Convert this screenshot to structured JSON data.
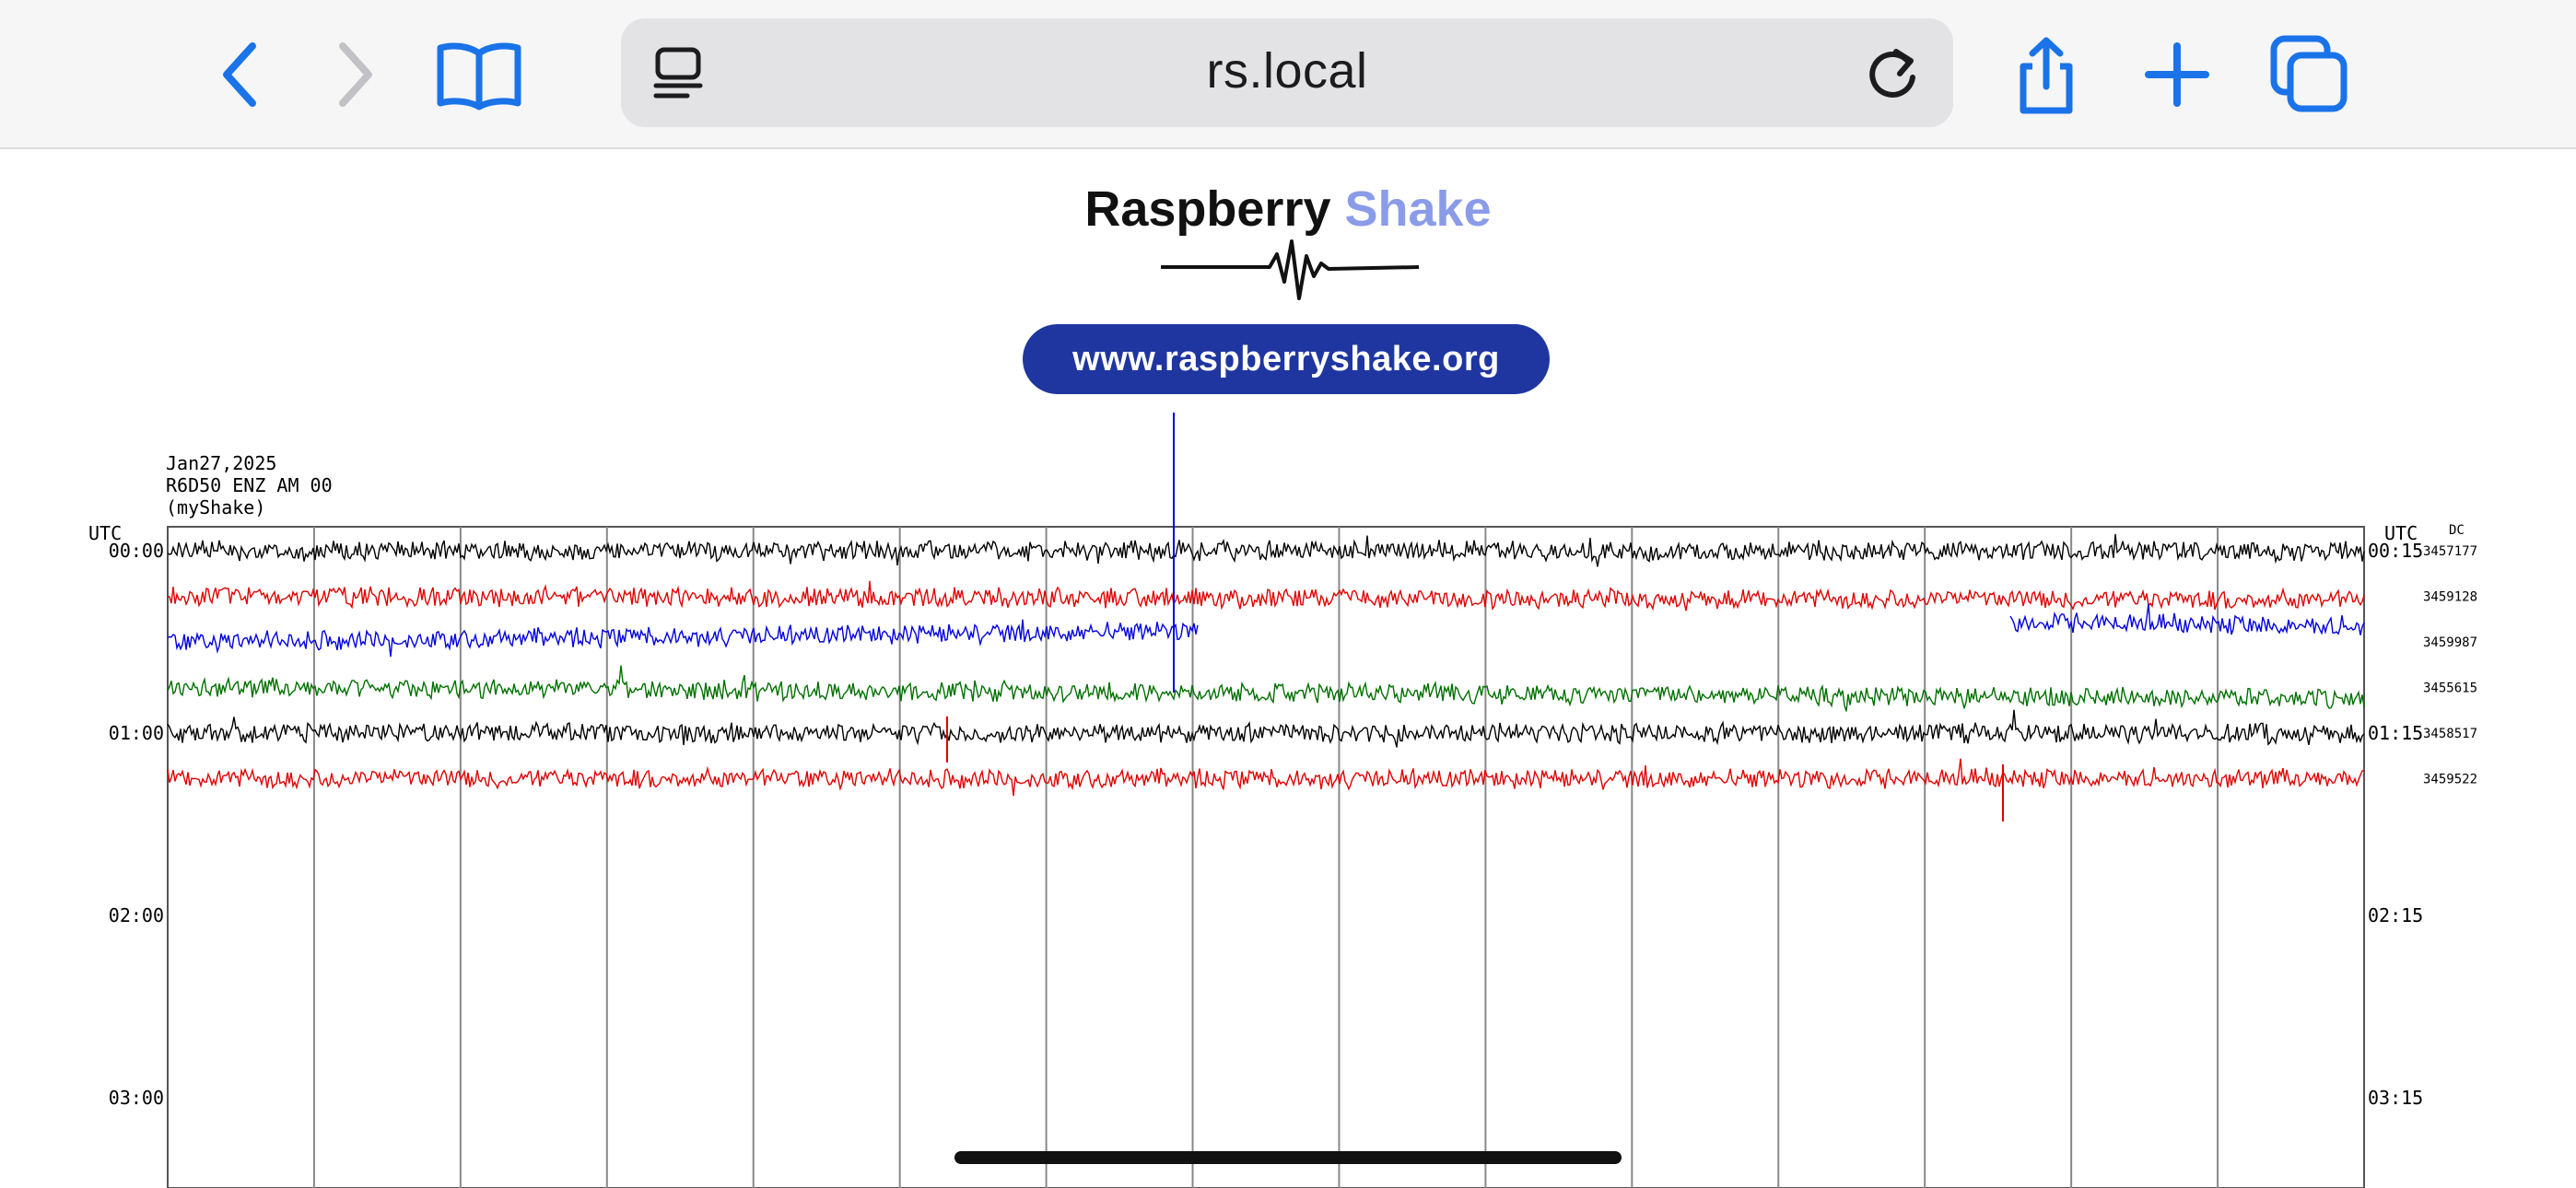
{
  "browser": {
    "url": "rs.local",
    "icons": [
      "back-icon",
      "forward-icon",
      "bookmarks-icon",
      "reader-icon",
      "reload-icon",
      "share-icon",
      "new-tab-icon",
      "tabs-icon"
    ],
    "accent_color": "#1a73e8"
  },
  "logo": {
    "brand_first": "Raspberry",
    "brand_second": "Shake",
    "website": "www.raspberryshake.org"
  },
  "helicorder": {
    "date": "Jan27,2025",
    "station": "R6D50 ENZ AM 00",
    "source": "(myShake)",
    "utc_left": "UTC",
    "utc_right": "UTC",
    "dc_label": "DC",
    "left_times": [
      "00:00",
      "01:00",
      "02:00",
      "03:00"
    ],
    "right_times": [
      "00:15",
      "01:15",
      "02:15",
      "03:15"
    ],
    "dc_values": [
      "3457177",
      "3459128",
      "3459987",
      "3455615",
      "3458517",
      "3459522"
    ],
    "trace_colors": [
      "#000000",
      "#e00000",
      "#0000e0",
      "#007000",
      "#000000",
      "#e00000"
    ]
  }
}
